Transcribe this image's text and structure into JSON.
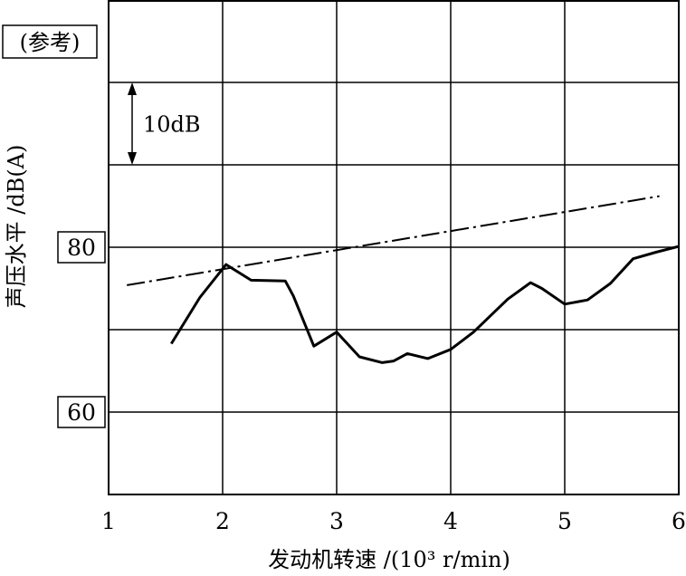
{
  "chart_data": {
    "type": "line",
    "title": "",
    "xlabel": "发动机转速 /(10³ r/min)",
    "ylabel": "声压水平 /dB(A)",
    "xlim": [
      1,
      6
    ],
    "ylim": [
      50,
      110
    ],
    "x_ticks": [
      "1",
      "2",
      "3",
      "4",
      "5",
      "6"
    ],
    "y_ticks_boxed": [
      "80",
      "60"
    ],
    "grid": true,
    "annotations": {
      "reference_box": "(参考)",
      "scale_bar": "10dB"
    },
    "series": [
      {
        "style": "solid",
        "points": [
          [
            1.55,
            68.3
          ],
          [
            1.8,
            73.9
          ],
          [
            2.03,
            77.9
          ],
          [
            2.25,
            76.0
          ],
          [
            2.55,
            75.9
          ],
          [
            2.62,
            74.1
          ],
          [
            2.8,
            68.0
          ],
          [
            3.0,
            69.7
          ],
          [
            3.2,
            66.7
          ],
          [
            3.4,
            66.0
          ],
          [
            3.5,
            66.2
          ],
          [
            3.62,
            67.1
          ],
          [
            3.8,
            66.5
          ],
          [
            4.0,
            67.6
          ],
          [
            4.2,
            69.7
          ],
          [
            4.5,
            73.7
          ],
          [
            4.7,
            75.7
          ],
          [
            4.8,
            75.0
          ],
          [
            5.0,
            73.1
          ],
          [
            5.2,
            73.6
          ],
          [
            5.4,
            75.6
          ],
          [
            5.6,
            78.6
          ],
          [
            5.8,
            79.4
          ],
          [
            6.0,
            80.1
          ]
        ]
      },
      {
        "style": "dash-dot",
        "points": [
          [
            1.16,
            75.4
          ],
          [
            5.83,
            86.2
          ]
        ]
      }
    ]
  }
}
